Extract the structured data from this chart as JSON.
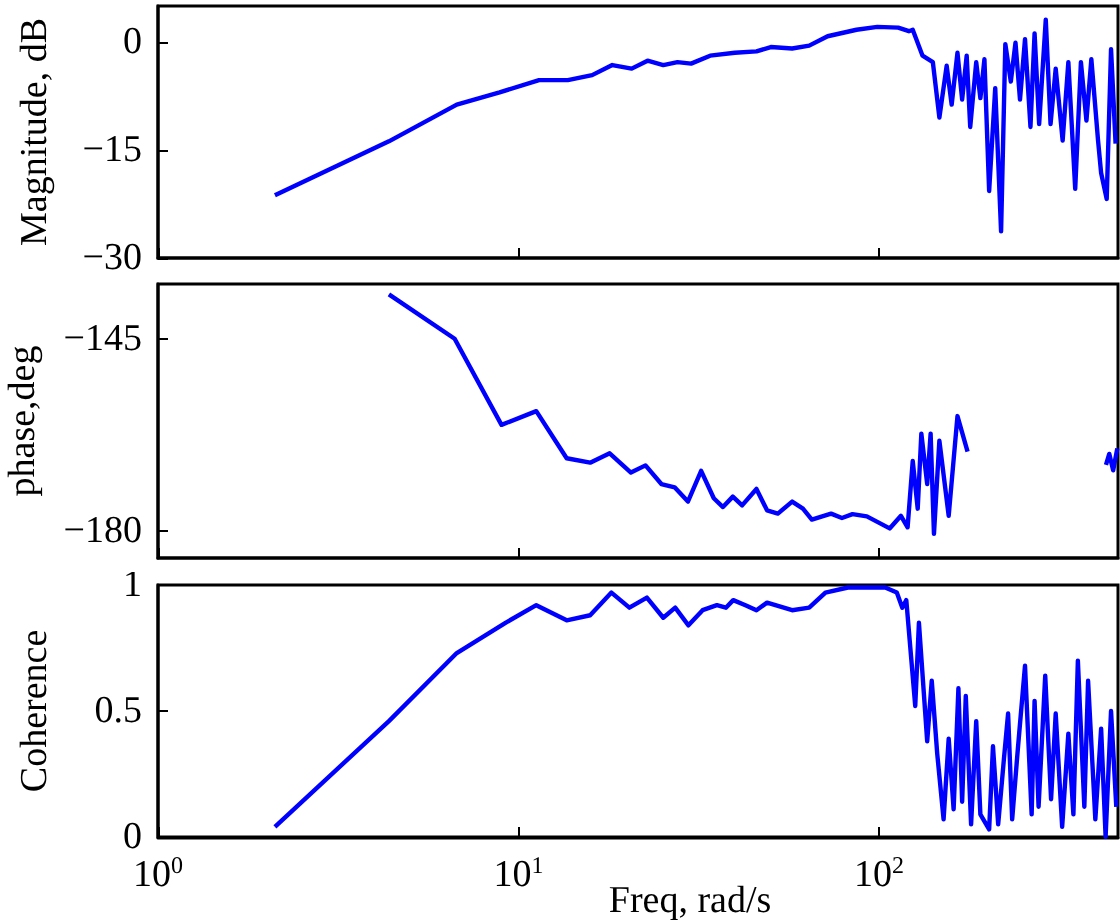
{
  "chart_data": [
    {
      "type": "line",
      "ylabel": "Magnitude, dB",
      "xlim": [
        1,
        460
      ],
      "xticks": [
        {
          "value": 1,
          "label": null
        },
        {
          "value": 10,
          "label": null
        },
        {
          "value": 100,
          "label": null
        }
      ],
      "ylim": [
        -30,
        5
      ],
      "yticks": [
        -30,
        -15,
        0
      ],
      "log": "x",
      "tick_labels": "y",
      "series": [
        {
          "color": "#0000ff",
          "x": [
            2.11,
            4.37,
            6.74,
            8.86,
            11.4,
            13.7,
            16.0,
            18.2,
            20.6,
            22.8,
            25.2,
            27.6,
            30.1,
            34.0,
            39.8,
            45.7,
            50.1,
            57.4,
            64,
            72,
            86.6,
            98.9,
            113,
            121,
            124,
            132,
            141,
            147,
            154,
            159,
            165,
            170,
            175,
            179,
            186,
            191,
            196,
            202,
            210,
            218,
            224,
            232,
            239,
            246,
            254,
            263,
            270,
            278,
            290,
            299,
            309,
            323,
            335,
            350,
            363,
            376,
            388,
            405,
            413,
            428,
            440,
            453
          ],
          "values": [
            -21.3,
            -13.8,
            -8.7,
            -7.0,
            -5.3,
            -5.3,
            -4.6,
            -3.2,
            -3.7,
            -2.6,
            -3.2,
            -2.8,
            -3.0,
            -1.9,
            -1.5,
            -1.3,
            -0.7,
            -0.9,
            -0.5,
            0.8,
            1.7,
            2.1,
            2.0,
            1.5,
            1.7,
            -1.9,
            -2.8,
            -10.5,
            -3.3,
            -8.7,
            -1.5,
            -8.0,
            -1.9,
            -11.8,
            -2.8,
            -7.8,
            -2.4,
            -20.7,
            -6.4,
            -26.3,
            -0.3,
            -5.5,
            -0.1,
            -8.0,
            0.4,
            -11.8,
            1.2,
            -11.4,
            3.1,
            -11.4,
            -3.7,
            -13.7,
            -2.8,
            -20.4,
            -2.8,
            -10.9,
            -2.4,
            -13.7,
            -18.2,
            -21.8,
            -1.0,
            -14.1
          ]
        }
      ]
    },
    {
      "type": "line",
      "ylabel": "phase,deg",
      "xlim": [
        1,
        460
      ],
      "xticks": [
        {
          "value": 1,
          "label": null
        },
        {
          "value": 10,
          "label": null
        },
        {
          "value": 100,
          "label": null
        }
      ],
      "ylim": [
        -185,
        -135
      ],
      "yticks": [
        -180,
        -145
      ],
      "log": "x",
      "tick_labels": "y",
      "series": [
        {
          "color": "#0000ff",
          "x": [
            4.37,
            6.65,
            8.97,
            11.2,
            13.6,
            15.8,
            17.9,
            20.5,
            22.5,
            24.9,
            27.1,
            29.5,
            32.1,
            34.8,
            36.9,
            39.3,
            41.7,
            45.7,
            48.9,
            52.4,
            57.4,
            61.5,
            65.1,
            73.6,
            78.9,
            84.4,
            92.5,
            107,
            115,
            120,
            124,
            128,
            131,
            136,
            139,
            142,
            147,
            156,
            165,
            176,
            190,
            426,
            435,
            446,
            458
          ],
          "values": [
            -136.9,
            -145,
            -160.7,
            -158.2,
            -166.8,
            -167.6,
            -165.9,
            -169.4,
            -168.1,
            -171.5,
            -172.1,
            -174.7,
            -169.1,
            -174.1,
            -175.7,
            -173.8,
            -175.4,
            -172.4,
            -176.3,
            -176.9,
            -174.7,
            -176.0,
            -178.0,
            -176.9,
            -177.7,
            -177.0,
            -177.4,
            -179.6,
            -177.3,
            -179.4,
            -167.3,
            -176.0,
            -162.3,
            -171.5,
            -162.3,
            -180.6,
            -163.6,
            -177.3,
            -159.1,
            -165.6,
            null,
            -168,
            -166,
            -169,
            -165
          ]
        }
      ]
    },
    {
      "type": "line",
      "ylabel": "Coherence",
      "xlabel": "Freq, rad/s",
      "xlim": [
        1,
        460
      ],
      "xticks": [
        {
          "value": 1,
          "label": "10$^{0}$"
        },
        {
          "value": 10,
          "label": "10$^{1}$"
        },
        {
          "value": 100,
          "label": "10$^{2}$"
        }
      ],
      "ylim": [
        0,
        1
      ],
      "yticks": [
        0,
        0.5,
        1
      ],
      "log": "x",
      "series": [
        {
          "color": "#0000ff",
          "x": [
            2.11,
            4.37,
            6.74,
            9.2,
            11.2,
            13.6,
            15.8,
            18.1,
            20.3,
            22.7,
            25.2,
            27.2,
            29.6,
            32.4,
            35.5,
            37.6,
            39.4,
            42.6,
            45.7,
            48.9,
            57.4,
            64,
            71,
            82,
            92.5,
            104,
            112,
            116,
            119,
            126,
            129,
            136,
            140,
            145,
            151,
            156,
            161,
            166,
            170,
            174,
            180,
            186,
            191,
            202,
            207,
            214,
            222,
            228,
            234,
            242,
            254,
            265,
            270,
            277,
            289,
            300,
            309,
            322,
            335,
            346,
            356,
            371,
            380,
            398,
            413,
            425,
            440,
            455
          ],
          "values": [
            0.04,
            0.46,
            0.73,
            0.85,
            0.92,
            0.86,
            0.88,
            0.97,
            0.91,
            0.95,
            0.87,
            0.91,
            0.84,
            0.9,
            0.92,
            0.91,
            0.94,
            0.92,
            0.9,
            0.93,
            0.9,
            0.91,
            0.97,
            0.99,
            0.99,
            0.99,
            0.97,
            0.91,
            0.94,
            0.52,
            0.85,
            0.38,
            0.62,
            0.33,
            0.07,
            0.39,
            0.11,
            0.59,
            0.14,
            0.56,
            0.05,
            0.46,
            0.09,
            0.03,
            0.36,
            0.05,
            0.31,
            0.49,
            0.07,
            0.33,
            0.68,
            0.09,
            0.54,
            0.12,
            0.64,
            0.15,
            0.49,
            0.04,
            0.41,
            0.09,
            0.7,
            0.12,
            0.62,
            0.07,
            0.43,
            0.0,
            0.5,
            0.12
          ]
        }
      ]
    }
  ]
}
